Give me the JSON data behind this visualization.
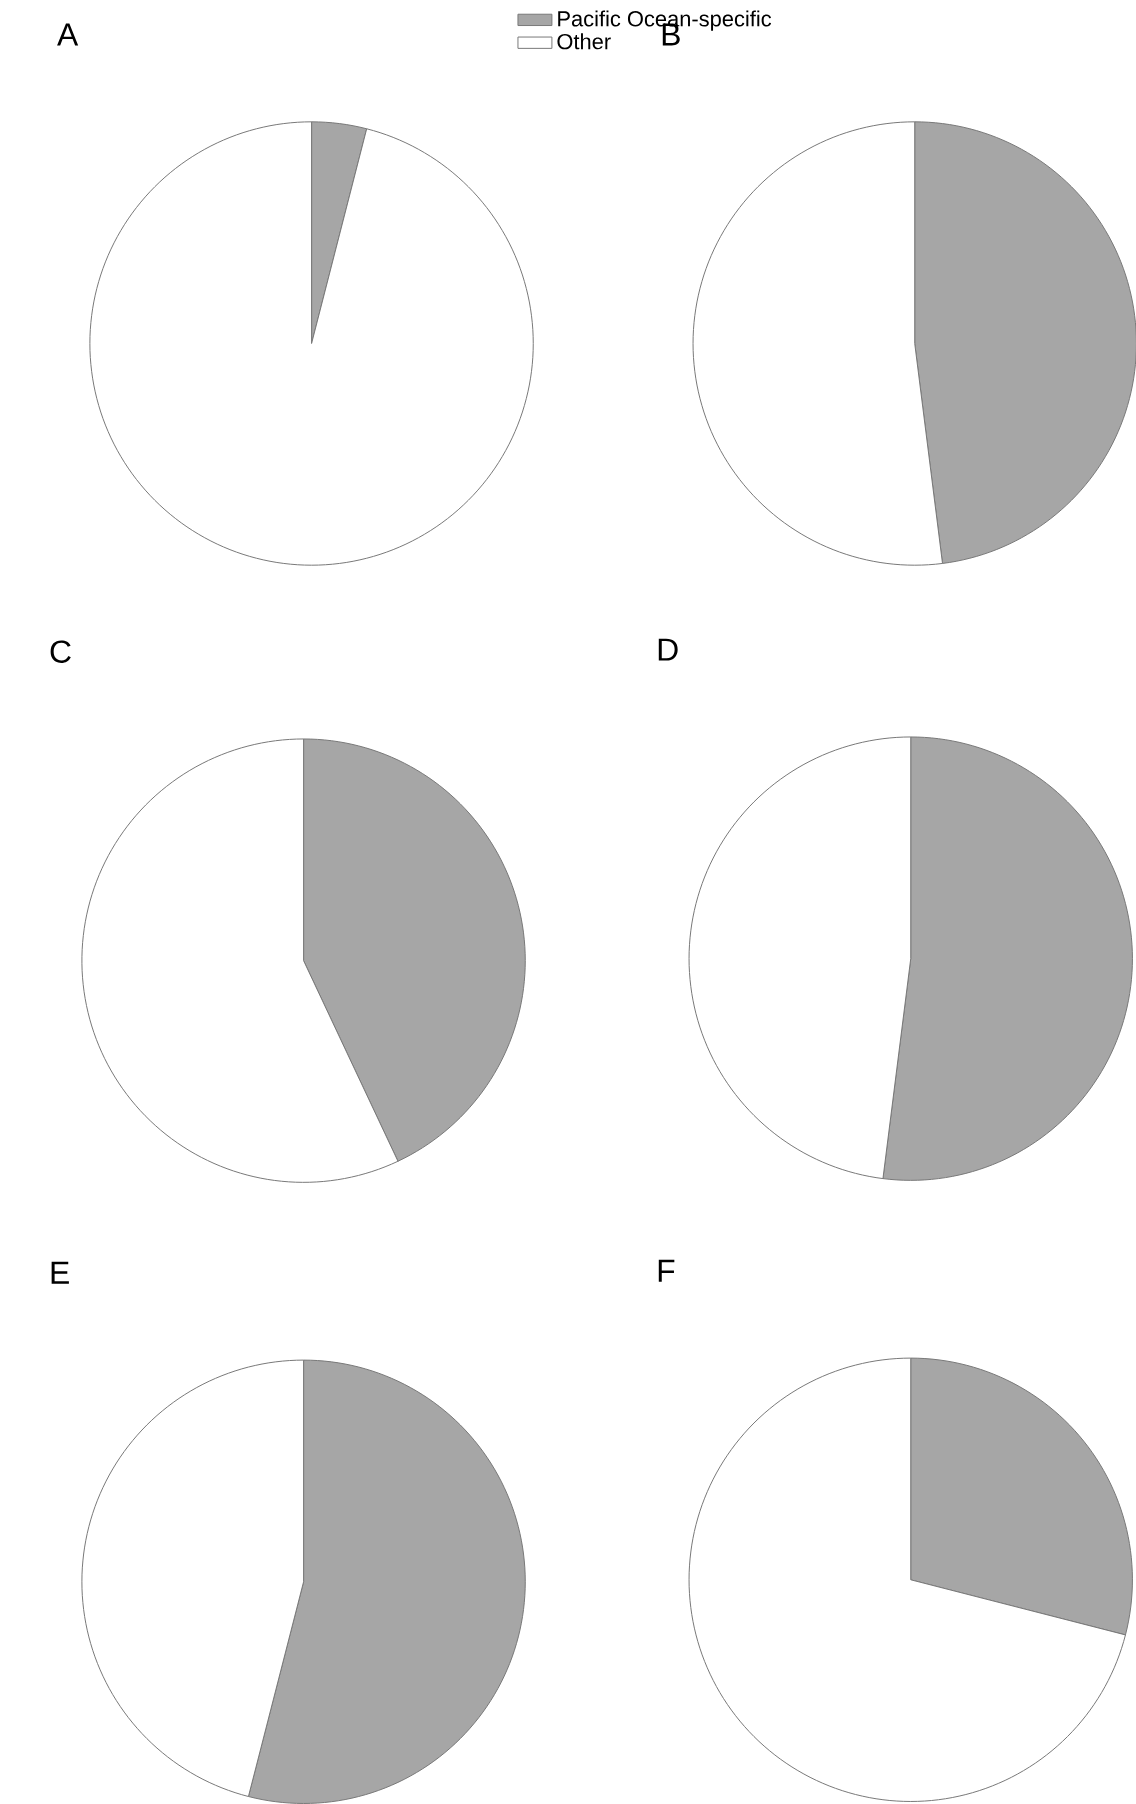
{
  "chart_data": [
    {
      "type": "pie",
      "title": "A",
      "categories": [
        "Pacific Ocean-specific",
        "Other"
      ],
      "values": [
        4,
        96
      ],
      "colors": [
        "#a6a6a6",
        "#ffffff"
      ],
      "legend": "top right"
    },
    {
      "type": "pie",
      "title": "B",
      "values": [
        48,
        52
      ],
      "colors": [
        "#a6a6a6",
        "#ffffff"
      ]
    },
    {
      "type": "pie",
      "title": "C",
      "values": [
        43,
        57
      ],
      "colors": [
        "#a6a6a6",
        "#ffffff"
      ]
    },
    {
      "type": "pie",
      "title": "D",
      "values": [
        52,
        48
      ],
      "colors": [
        "#a6a6a6",
        "#ffffff"
      ]
    },
    {
      "type": "pie",
      "title": "E",
      "values": [
        54,
        46
      ],
      "colors": [
        "#a6a6a6",
        "#ffffff"
      ]
    },
    {
      "type": "pie",
      "title": "F",
      "values": [
        29,
        71
      ],
      "colors": [
        "#a6a6a6",
        "#ffffff"
      ]
    }
  ]
}
